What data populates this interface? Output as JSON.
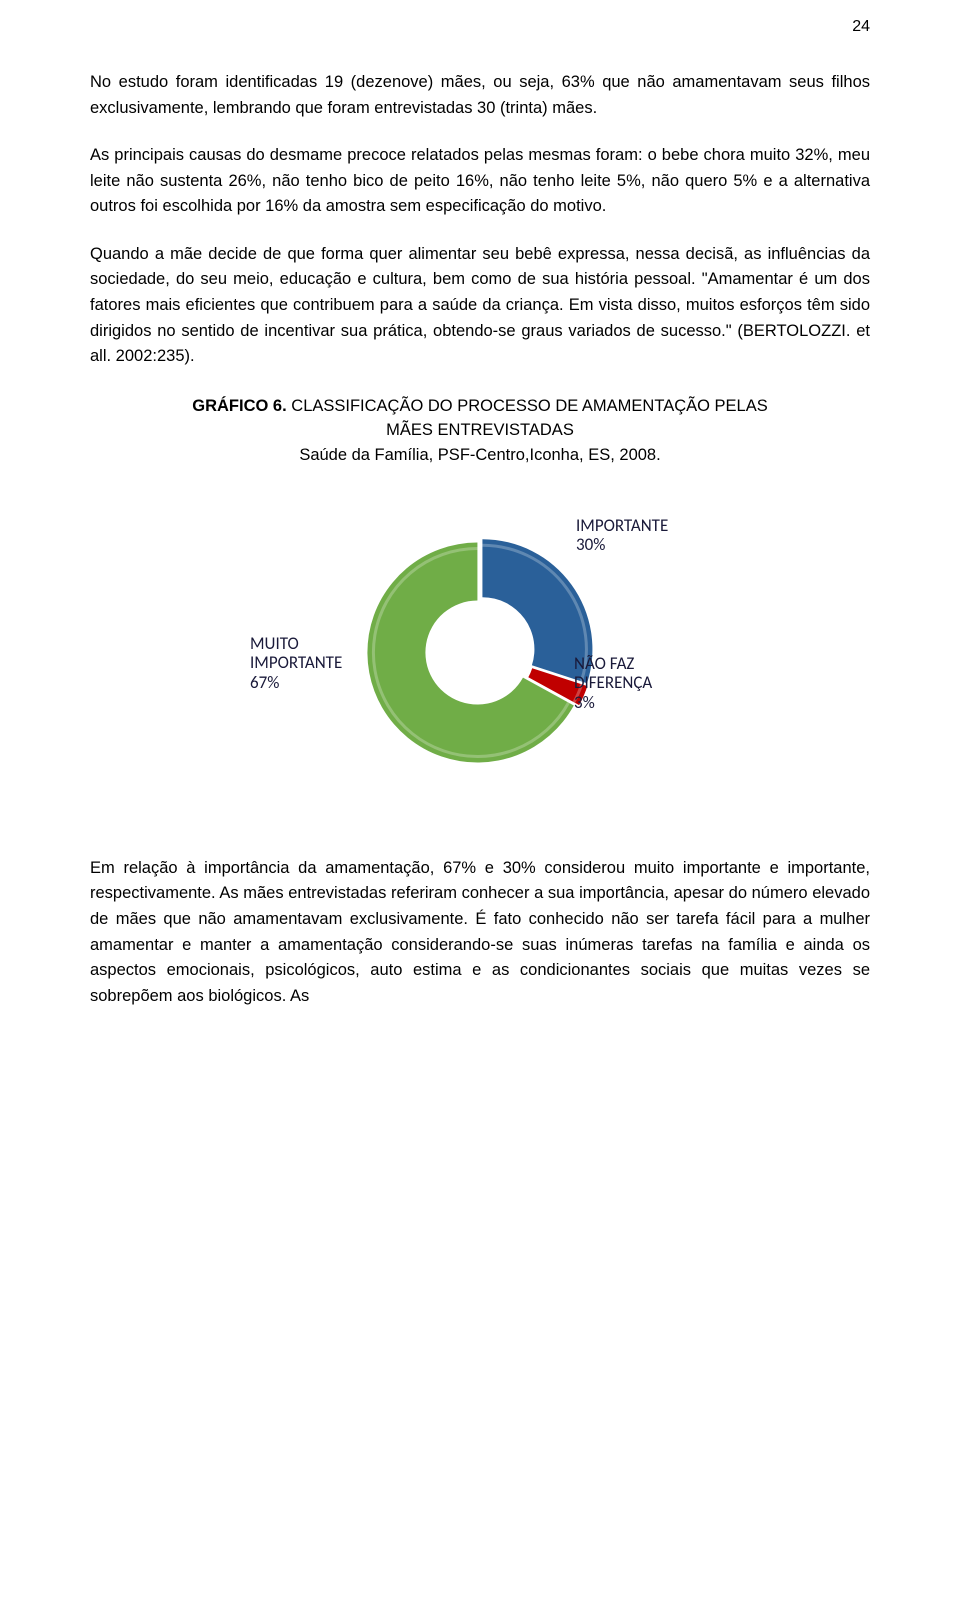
{
  "page_number": "24",
  "paragraphs": {
    "p1": "No estudo foram identificadas 19 (dezenove) mães, ou seja, 63% que não amamentavam seus filhos exclusivamente, lembrando que foram entrevistadas 30 (trinta) mães.",
    "p2": "As principais causas do desmame precoce relatados pelas mesmas foram: o bebe chora muito 32%, meu leite não sustenta 26%, não tenho bico de peito 16%, não tenho leite 5%, não quero 5% e a alternativa outros foi escolhida por 16% da amostra sem especificação do motivo.",
    "p3": "Quando a mãe decide de que forma quer alimentar seu bebê expressa, nessa decisã, as influências da sociedade, do seu meio, educação e cultura, bem como de sua história pessoal. \"Amamentar é um dos fatores mais eficientes que contribuem para a saúde da criança. Em vista disso, muitos esforços têm sido dirigidos no sentido de incentivar sua prática, obtendo-se graus variados de sucesso.\" (BERTOLOZZI. et all. 2002:235).",
    "p4": "Em relação à importância da amamentação, 67% e 30% considerou muito importante e importante, respectivamente. As mães entrevistadas referiram conhecer a sua importância, apesar do número elevado de mães que não amamentavam exclusivamente. É fato conhecido não ser tarefa fácil para a mulher amamentar e manter a amamentação considerando-se suas inúmeras tarefas na família e ainda os aspectos emocionais, psicológicos, auto estima e as condicionantes sociais que muitas vezes se sobrepõem aos biológicos. As"
  },
  "chart_heading": {
    "bold": "GRÁFICO 6.",
    "line1_rest": " CLASSIFICAÇÃO DO PROCESSO DE AMAMENTAÇÃO PELAS",
    "line2": "MÃES ENTREVISTADAS",
    "line3": "Saúde da Família, PSF-Centro,Iconha, ES, 2008."
  },
  "chart": {
    "type": "donut",
    "hole_ratio": 0.46,
    "background_color": "#ffffff",
    "label_fontsize": 17,
    "label_color": "#1a1a3a",
    "slices": [
      {
        "name": "IMPORTANTE",
        "value": 30,
        "pct_text": "30%",
        "color": "#2a6099"
      },
      {
        "name": "NÃO FAZ DIFERENÇA",
        "value": 3,
        "pct_text": "3%",
        "color": "#c00000",
        "name_line1": "NÃO FAZ",
        "name_line2": "DIFERENÇA"
      },
      {
        "name": "MUITO IMPORTANTE",
        "value": 67,
        "pct_text": "67%",
        "color": "#70ad47",
        "name_line1": "MUITO",
        "name_line2": "IMPORTANTE"
      }
    ],
    "donut_outer_r": 110,
    "donut_inner_r": 52,
    "start_angle_deg": -90
  }
}
